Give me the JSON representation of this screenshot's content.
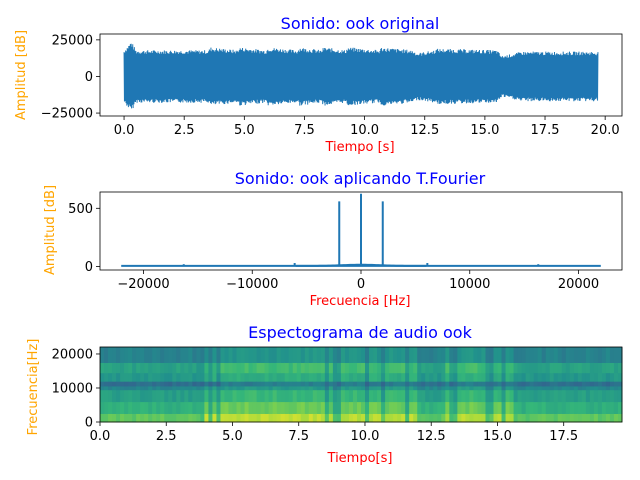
{
  "colors": {
    "title": "#0000ff",
    "xlabel": "#ff0000",
    "ylabel": "#ffa500",
    "series": "#1f77b4"
  },
  "chart_data": [
    {
      "type": "line",
      "title": "Sonido: ook original",
      "xlabel": "Tiempo [s]",
      "ylabel": "Amplitud [dB]",
      "xlim": [
        -1.0,
        20.7
      ],
      "ylim": [
        -27000,
        29000
      ],
      "xticks": [
        0,
        2.5,
        5,
        7.5,
        10,
        12.5,
        15,
        17.5,
        20
      ],
      "xtick_labels": [
        "0.0",
        "2.5",
        "5.0",
        "7.5",
        "10.0",
        "12.5",
        "15.0",
        "17.5",
        "20.0"
      ],
      "yticks": [
        -25000,
        0,
        25000
      ],
      "ytick_labels": [
        "−25000",
        "0",
        "25000"
      ],
      "duration_s": 19.7,
      "envelope": {
        "t": [
          0.0,
          0.3,
          0.5,
          3.5,
          3.6,
          4.7,
          4.8,
          5.9,
          6.0,
          7.2,
          7.3,
          8.2,
          8.3,
          9.2,
          9.3,
          10.6,
          10.7,
          12.0,
          12.2,
          12.9,
          13.0,
          15.5,
          15.7,
          16.3,
          16.5,
          19.7
        ],
        "amplitude": [
          18000,
          24000,
          18000,
          18000,
          20000,
          18000,
          20000,
          18000,
          20000,
          18000,
          20000,
          18000,
          20000,
          18000,
          20000,
          18000,
          20000,
          18000,
          16000,
          18000,
          19000,
          18000,
          14000,
          16000,
          17000,
          17000
        ]
      }
    },
    {
      "type": "line",
      "title": "Sonido: ook aplicando T.Fourier",
      "xlabel": "Frecuencia [Hz]",
      "ylabel": "Amplitud [dB]",
      "xlim": [
        -24000,
        24000
      ],
      "ylim": [
        -30,
        640
      ],
      "xticks": [
        -20000,
        -10000,
        0,
        10000,
        20000
      ],
      "xtick_labels": [
        "−20000",
        "−10000",
        "0",
        "10000",
        "20000"
      ],
      "yticks": [
        0,
        500
      ],
      "ytick_labels": [
        "0",
        "500"
      ],
      "x_range": [
        -22050,
        22050
      ],
      "baseline": 5,
      "peaks": [
        {
          "x": -16300,
          "y": 20
        },
        {
          "x": -6100,
          "y": 30
        },
        {
          "x": -2000,
          "y": 560
        },
        {
          "x": 0,
          "y": 625
        },
        {
          "x": 2000,
          "y": 560
        },
        {
          "x": 6100,
          "y": 30
        },
        {
          "x": 16300,
          "y": 20
        }
      ]
    },
    {
      "type": "heatmap",
      "title": "Espectograma de audio ook",
      "xlabel": "Tiempo[s]",
      "ylabel": "Frecuencia[Hz]",
      "xlim": [
        0,
        19.7
      ],
      "ylim": [
        0,
        22050
      ],
      "xticks": [
        0,
        2.5,
        5,
        7.5,
        10,
        12.5,
        15,
        17.5
      ],
      "xtick_labels": [
        "0.0",
        "2.5",
        "5.0",
        "7.5",
        "10.0",
        "12.5",
        "15.0",
        "17.5"
      ],
      "yticks": [
        0,
        10000,
        20000
      ],
      "ytick_labels": [
        "0",
        "10000",
        "20000"
      ],
      "colormap": [
        "#440154",
        "#31688e",
        "#21918c",
        "#35b779",
        "#90d743",
        "#fde725"
      ],
      "active_segments_s": [
        [
          3.6,
          12.0
        ],
        [
          13.0,
          15.6
        ]
      ],
      "bands_hz": [
        {
          "from": 0,
          "to": 2500,
          "level": 0.88
        },
        {
          "from": 2500,
          "to": 6000,
          "level": 0.72
        },
        {
          "from": 6000,
          "to": 9500,
          "level": 0.6
        },
        {
          "from": 9500,
          "to": 10600,
          "level": 0.45
        },
        {
          "from": 10600,
          "to": 12000,
          "level": 0.3
        },
        {
          "from": 12000,
          "to": 14500,
          "level": 0.55
        },
        {
          "from": 14500,
          "to": 17500,
          "level": 0.62
        },
        {
          "from": 17500,
          "to": 22050,
          "level": 0.42
        }
      ]
    }
  ]
}
